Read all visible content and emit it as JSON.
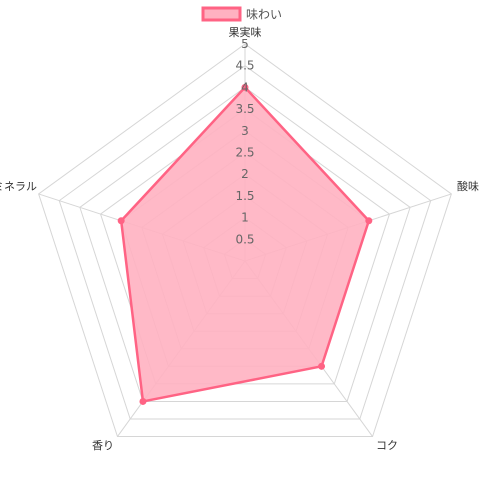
{
  "chart_data": {
    "type": "radar",
    "axes": [
      "果実味",
      "酸味",
      "コク",
      "香り",
      "ミネラル"
    ],
    "series": [
      {
        "name": "味わい",
        "values": [
          4,
          3,
          3,
          4,
          3
        ],
        "fill_color": "#ffb1c1",
        "line_color": "#ff6384"
      }
    ],
    "r_range": [
      0,
      5
    ],
    "ticks": [
      "0.5",
      "1",
      "1.5",
      "2",
      "2.5",
      "3",
      "3.5",
      "4",
      "4.5",
      "5"
    ],
    "tick_values": [
      0.5,
      1,
      1.5,
      2,
      2.5,
      3,
      3.5,
      4,
      4.5,
      5
    ],
    "grid": true,
    "legend_position": "top"
  }
}
